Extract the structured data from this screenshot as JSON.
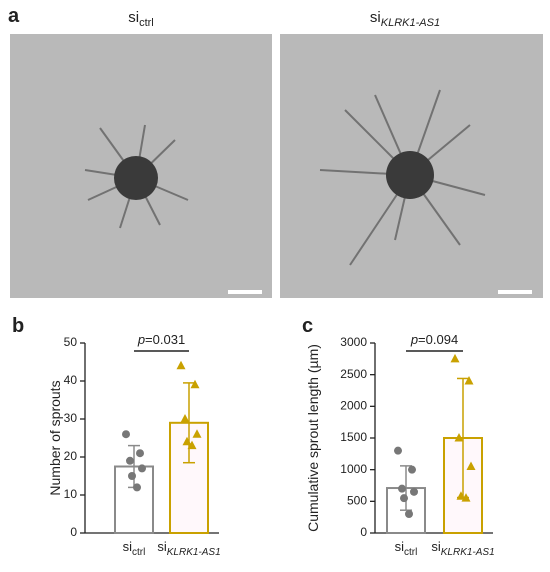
{
  "figure": {
    "panel_labels": [
      "a",
      "b",
      "c"
    ],
    "image_titles": [
      {
        "text": "si",
        "sub": "ctrl"
      },
      {
        "text": "si",
        "sub": "KLRK1-AS1"
      }
    ]
  },
  "chart_data": [
    {
      "type": "bar",
      "ylabel": "Number of sprouts",
      "categories": [
        {
          "text": "si",
          "sub": "ctrl"
        },
        {
          "text": "si",
          "sub": "KLRK1-AS1"
        }
      ],
      "values": [
        17.5,
        29
      ],
      "errors": [
        5.5,
        10.5
      ],
      "points": [
        [
          26,
          21,
          19,
          17,
          15,
          12
        ],
        [
          44,
          39,
          30,
          26,
          24,
          23
        ]
      ],
      "colors": [
        "#8a8a8a",
        "#c9a100"
      ],
      "markers": [
        "circle",
        "triangle"
      ],
      "ylim": [
        0,
        50
      ],
      "yticks": [
        0,
        10,
        20,
        30,
        40,
        50
      ],
      "annotation": {
        "symbol": "p",
        "text": "=0.031"
      }
    },
    {
      "type": "bar",
      "ylabel": "Cumulative sprout length (µm)",
      "categories": [
        {
          "text": "si",
          "sub": "ctrl"
        },
        {
          "text": "si",
          "sub": "KLRK1-AS1"
        }
      ],
      "values": [
        710,
        1500
      ],
      "errors": [
        350,
        940
      ],
      "points": [
        [
          1300,
          1000,
          700,
          650,
          550,
          300
        ],
        [
          2750,
          2400,
          1500,
          1050,
          580,
          550
        ]
      ],
      "colors": [
        "#8a8a8a",
        "#c9a100"
      ],
      "markers": [
        "circle",
        "triangle"
      ],
      "ylim": [
        0,
        3000
      ],
      "yticks": [
        0,
        500,
        1000,
        1500,
        2000,
        2500,
        3000
      ],
      "annotation": {
        "symbol": "p",
        "text": "=0.094"
      }
    }
  ]
}
